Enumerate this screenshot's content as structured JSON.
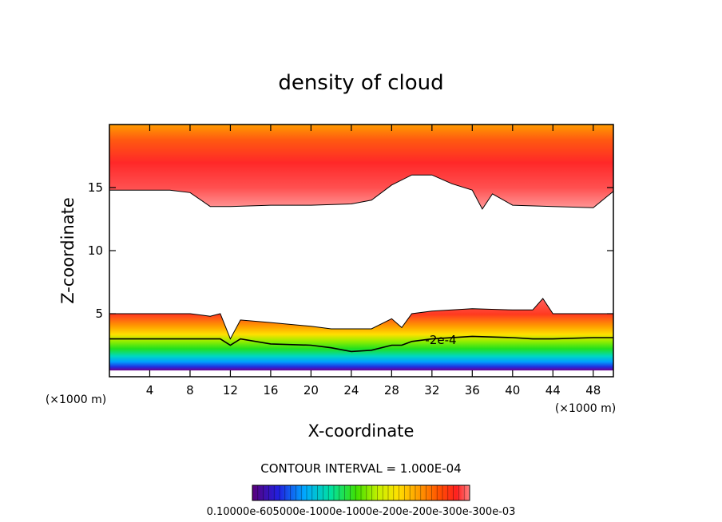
{
  "chart_data": {
    "type": "heatmap",
    "title": "density of cloud",
    "xlabel": "X-coordinate",
    "ylabel": "Z-coordinate",
    "x_unit": "(×1000 m)",
    "x_unit_right": "(×1000 m)",
    "xlim": [
      0,
      50
    ],
    "ylim": [
      0,
      20
    ],
    "x_ticks": [
      "4",
      "8",
      "12",
      "16",
      "20",
      "24",
      "28",
      "32",
      "36",
      "40",
      "44",
      "48"
    ],
    "y_ticks": [
      "5",
      "10",
      "15"
    ],
    "contour_interval_text": "CONTOUR INTERVAL = 1.000E-04",
    "contour_label": "-2e-4",
    "colorbar_label_text": "0.10000e-605000e-1000e-1000e-200e-200e-300e-300e-03",
    "colormap": [
      "#5a007a",
      "#2020e0",
      "#00a8ff",
      "#00e0a0",
      "#40e000",
      "#c8f000",
      "#ffe000",
      "#ffa000",
      "#ff5000",
      "#ff2020",
      "#ff8080"
    ],
    "upper_layer": {
      "x": [
        0,
        4,
        6,
        8,
        10,
        12,
        16,
        20,
        24,
        26,
        28,
        30,
        32,
        34,
        36,
        37,
        38,
        40,
        44,
        48,
        50
      ],
      "base": [
        14.8,
        14.8,
        14.8,
        14.6,
        13.5,
        13.5,
        13.6,
        13.6,
        13.7,
        14.0,
        15.2,
        16.0,
        16.0,
        15.3,
        14.8,
        13.3,
        14.5,
        13.6,
        13.5,
        13.4,
        14.7
      ],
      "top": 20
    },
    "lower_layer": {
      "x": [
        0,
        4,
        8,
        10,
        11,
        12,
        13,
        16,
        20,
        22,
        24,
        26,
        28,
        29,
        30,
        32,
        36,
        40,
        42,
        43,
        44,
        48,
        50
      ],
      "top": [
        5.0,
        5.0,
        5.0,
        4.8,
        5.0,
        3.0,
        4.5,
        4.3,
        4.0,
        3.8,
        3.8,
        3.8,
        4.6,
        3.9,
        5.0,
        5.2,
        5.4,
        5.3,
        5.3,
        6.2,
        5.0,
        5.0,
        5.0
      ],
      "contour_2e4": [
        3.0,
        3.0,
        3.0,
        3.0,
        3.0,
        2.5,
        3.0,
        2.6,
        2.5,
        2.3,
        2.0,
        2.1,
        2.5,
        2.5,
        2.8,
        3.0,
        3.2,
        3.1,
        3.0,
        3.0,
        3.0,
        3.1,
        3.1
      ],
      "bottom": 0.5
    }
  }
}
